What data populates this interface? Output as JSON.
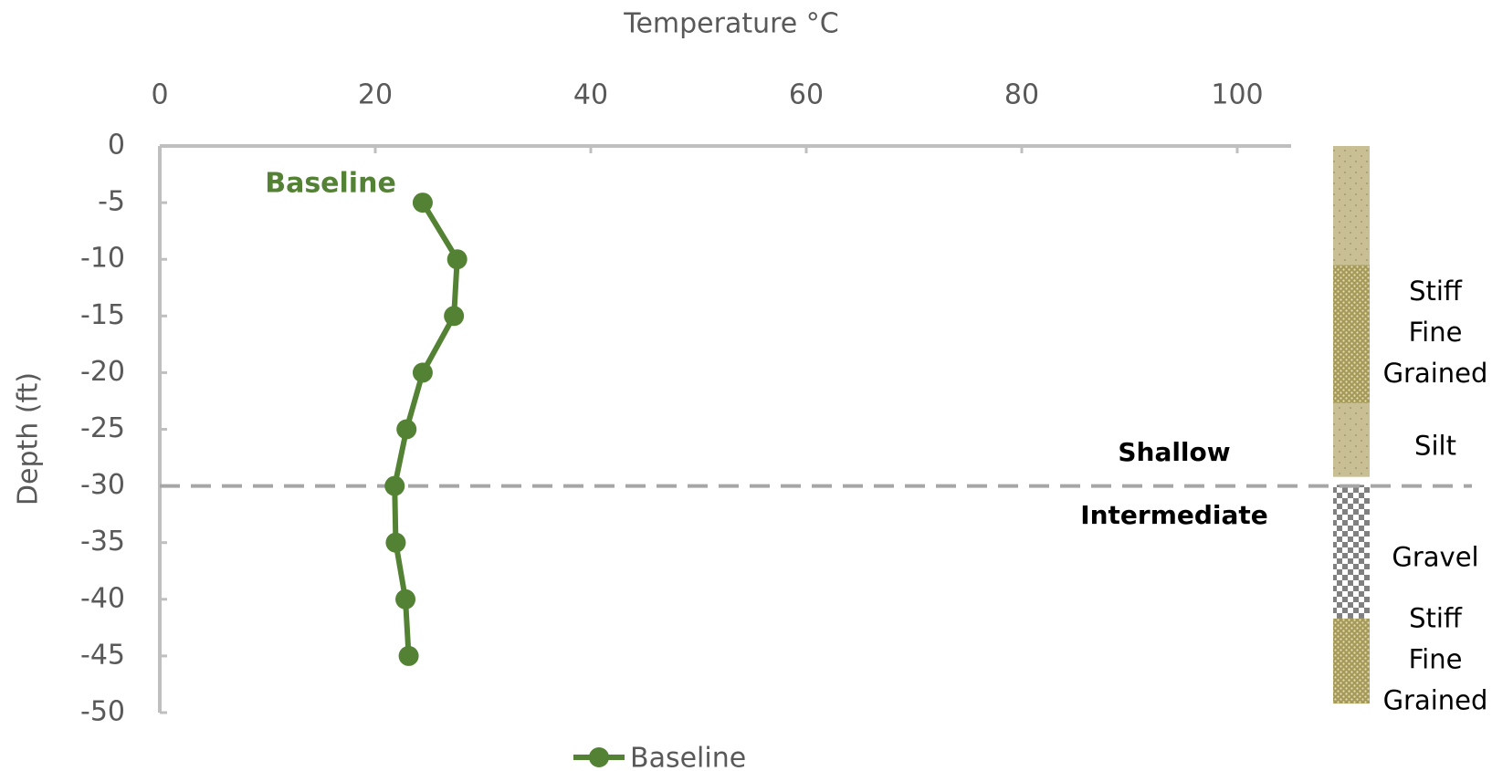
{
  "chart_data": {
    "type": "line",
    "title": "Temperature °C",
    "y_label": "Depth (ft)",
    "xlim": [
      0,
      105
    ],
    "xticks": [
      0,
      20,
      40,
      60,
      80,
      100
    ],
    "ylim": [
      -50,
      0
    ],
    "yticks": [
      0,
      -5,
      -10,
      -15,
      -20,
      -25,
      -30,
      -35,
      -40,
      -45,
      -50
    ],
    "grid": false,
    "legend": "bottom",
    "series": [
      {
        "name": "Baseline",
        "color": "#548235",
        "x": [
          24.4,
          27.6,
          27.3,
          24.4,
          22.9,
          21.8,
          21.9,
          22.8,
          23.1
        ],
        "values": [
          -5,
          -10,
          -15,
          -20,
          -25,
          -30,
          -35,
          -40,
          -45
        ]
      }
    ],
    "series_annotation": "Baseline",
    "reference_line": -30,
    "zone_labels": [
      "Shallow",
      "Intermediate"
    ],
    "soil_layers": [
      {
        "top": 0,
        "bottom": -10.5,
        "color": "#c8bf95"
      },
      {
        "top": -10.5,
        "bottom": -22.7,
        "color": "#a59a5a",
        "label": [
          "Stiff",
          "Fine",
          "Grained"
        ]
      },
      {
        "top": -22.7,
        "bottom": -29.2,
        "color": "#c8bf95",
        "label": [
          "Silt"
        ]
      },
      {
        "top": -29.9,
        "bottom": -41.7,
        "color": "#808080",
        "label": [
          "Gravel"
        ]
      },
      {
        "top": -41.7,
        "bottom": -49.2,
        "color": "#a59a5a",
        "label": [
          "Stiff",
          "Fine",
          "Grained"
        ]
      }
    ]
  }
}
